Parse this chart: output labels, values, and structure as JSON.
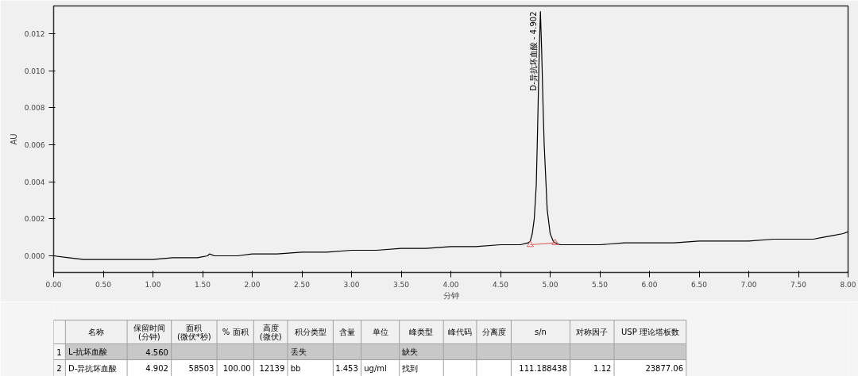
{
  "chart_data": {
    "type": "line",
    "xlabel": "分钟",
    "ylabel": "AU",
    "xlim": [
      0,
      8
    ],
    "ylim": [
      -0.0009,
      0.0135
    ],
    "xticks": [
      {
        "value": 0,
        "label": "0.00"
      },
      {
        "value": 0.5,
        "label": "0.50"
      },
      {
        "value": 1,
        "label": "1.00"
      },
      {
        "value": 1.5,
        "label": "1.50"
      },
      {
        "value": 2,
        "label": "2.00"
      },
      {
        "value": 2.5,
        "label": "2.50"
      },
      {
        "value": 3,
        "label": "3.00"
      },
      {
        "value": 3.5,
        "label": "3.50"
      },
      {
        "value": 4,
        "label": "4.00"
      },
      {
        "value": 4.5,
        "label": "4.50"
      },
      {
        "value": 5,
        "label": "5.00"
      },
      {
        "value": 5.5,
        "label": "5.50"
      },
      {
        "value": 6,
        "label": "6.00"
      },
      {
        "value": 6.5,
        "label": "6.50"
      },
      {
        "value": 7,
        "label": "7.00"
      },
      {
        "value": 7.5,
        "label": "7.50"
      },
      {
        "value": 8,
        "label": "8.00"
      }
    ],
    "yticks": [
      {
        "value": 0,
        "label": "0.000"
      },
      {
        "value": 0.002,
        "label": "0.002"
      },
      {
        "value": 0.004,
        "label": "0.004"
      },
      {
        "value": 0.006,
        "label": "0.006"
      },
      {
        "value": 0.008,
        "label": "0.008"
      },
      {
        "value": 0.01,
        "label": "0.010"
      },
      {
        "value": 0.012,
        "label": "0.012"
      }
    ],
    "series": [
      {
        "color": "#000000",
        "marker": "none",
        "x": [
          0,
          0.15,
          0.3,
          0.45,
          0.6,
          0.8,
          1.0,
          1.2,
          1.3,
          1.45,
          1.55,
          1.57,
          1.62,
          1.75,
          1.85,
          2.0,
          2.25,
          2.5,
          2.75,
          3.0,
          3.25,
          3.5,
          3.75,
          4.0,
          4.25,
          4.5,
          4.7,
          4.78,
          4.8,
          4.82,
          4.84,
          4.86,
          4.87,
          4.88,
          4.89,
          4.902,
          4.915,
          4.93,
          4.94,
          4.96,
          4.97,
          5.0,
          5.03,
          5.05,
          5.1,
          5.2,
          5.35,
          5.5,
          5.75,
          6.0,
          6.25,
          6.5,
          6.75,
          7.0,
          7.25,
          7.5,
          7.65,
          7.75,
          7.85,
          7.95,
          8.0
        ],
        "values": [
          0,
          -0.0001,
          -0.0002,
          -0.0002,
          -0.0002,
          -0.0002,
          -0.0002,
          -0.0001,
          -0.0001,
          -0.0001,
          0,
          0.0001,
          0,
          0,
          0,
          0.0001,
          0.0001,
          0.0002,
          0.0002,
          0.0003,
          0.0003,
          0.0004,
          0.0004,
          0.0005,
          0.0005,
          0.0006,
          0.0006,
          0.0007,
          0.0008,
          0.0012,
          0.002,
          0.0038,
          0.006,
          0.0085,
          0.011,
          0.0132,
          0.011,
          0.0078,
          0.006,
          0.0037,
          0.0025,
          0.0012,
          0.0008,
          0.0007,
          0.0006,
          0.0006,
          0.0006,
          0.0006,
          0.0007,
          0.0007,
          0.0007,
          0.0008,
          0.0008,
          0.0008,
          0.0009,
          0.0009,
          0.0009,
          0.001,
          0.0011,
          0.0012,
          0.0013
        ]
      },
      {
        "color": "#e06666",
        "marker": "triangle",
        "x": [
          4.8,
          5.05
        ],
        "values": [
          0.0006,
          0.0007
        ]
      }
    ],
    "annotations": [
      {
        "text": "D-异抗坏血酸 - 4.902",
        "x": 4.902,
        "y": 0.0132
      },
      "名称",
      "保留时间\n(分钟)",
      "面积\n(微伏*秒)",
      "% 面积",
      "高度\n(微伏)",
      "积分类型",
      "含量",
      "单位",
      "峰类型",
      "峰代码",
      "分离度",
      "s/n",
      "对称因子",
      "USP 理论塔板数",
      "1",
      "L-抗坏血酸",
      "4.560",
      "丢失",
      "缺失",
      "2",
      "D-异抗坏血酸",
      "4.902",
      "58503",
      "100.00",
      "12139",
      "bb",
      "1.453",
      "ug/ml",
      "找到",
      "111.188438",
      "1.12",
      "23877.06"
    ]
  }
}
